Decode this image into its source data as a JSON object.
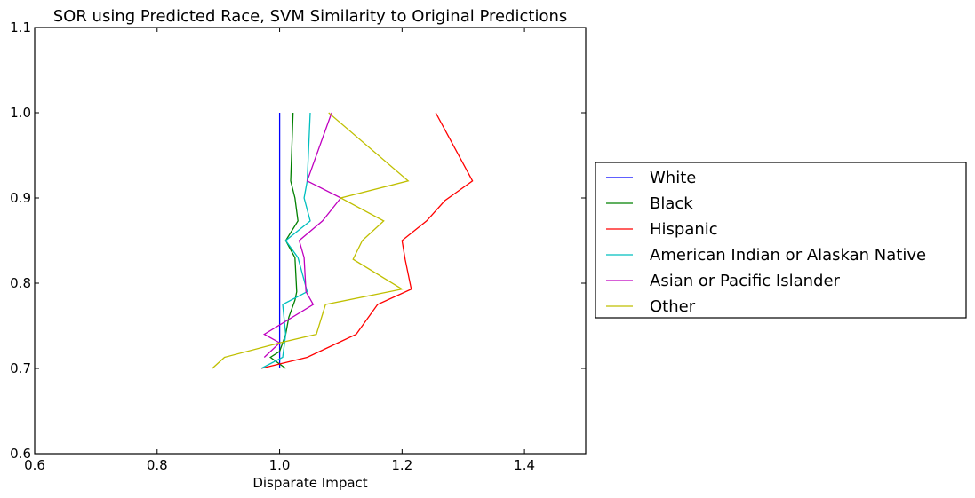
{
  "chart_data": {
    "type": "line",
    "title": "SOR using Predicted Race, SVM Similarity to Original Predictions",
    "xlabel": "Disparate Impact",
    "ylabel": "",
    "xlim": [
      0.6,
      1.5
    ],
    "ylim": [
      0.6,
      1.1
    ],
    "xticks": [
      "0.6",
      "0.8",
      "1.0",
      "1.2",
      "1.4"
    ],
    "yticks": [
      "0.6",
      "0.7",
      "0.8",
      "0.9",
      "1.0",
      "1.1"
    ],
    "grid": false,
    "legend_position": "center-right outside",
    "series": [
      {
        "name": "White",
        "color": "#0000ff",
        "points": [
          [
            1.0,
            0.7
          ],
          [
            1.0,
            0.71
          ],
          [
            1.0,
            0.72
          ],
          [
            1.0,
            0.73
          ],
          [
            1.0,
            0.74
          ],
          [
            1.0,
            0.76
          ],
          [
            1.0,
            0.78
          ],
          [
            1.0,
            0.79
          ],
          [
            1.0,
            0.83
          ],
          [
            1.0,
            0.85
          ],
          [
            1.0,
            0.87
          ],
          [
            1.0,
            0.9
          ],
          [
            1.0,
            0.92
          ],
          [
            1.0,
            1.0
          ]
        ]
      },
      {
        "name": "Black",
        "color": "#008000",
        "points": [
          [
            1.01,
            0.7
          ],
          [
            0.985,
            0.713
          ],
          [
            1.0,
            0.72
          ],
          [
            1.005,
            0.73
          ],
          [
            1.01,
            0.74
          ],
          [
            1.015,
            0.76
          ],
          [
            1.025,
            0.78
          ],
          [
            1.028,
            0.79
          ],
          [
            1.025,
            0.83
          ],
          [
            1.01,
            0.85
          ],
          [
            1.03,
            0.873
          ],
          [
            1.025,
            0.9
          ],
          [
            1.018,
            0.92
          ],
          [
            1.022,
            1.0
          ]
        ]
      },
      {
        "name": "Hispanic",
        "color": "#ff0000",
        "points": [
          [
            0.97,
            0.7
          ],
          [
            1.045,
            0.713
          ],
          [
            1.125,
            0.74
          ],
          [
            1.16,
            0.775
          ],
          [
            1.215,
            0.793
          ],
          [
            1.205,
            0.828
          ],
          [
            1.2,
            0.85
          ],
          [
            1.24,
            0.873
          ],
          [
            1.27,
            0.897
          ],
          [
            1.315,
            0.92
          ],
          [
            1.255,
            1.0
          ]
        ]
      },
      {
        "name": "American Indian or Alaskan Native",
        "color": "#00bfbf",
        "points": [
          [
            0.97,
            0.7
          ],
          [
            1.005,
            0.713
          ],
          [
            1.01,
            0.74
          ],
          [
            1.005,
            0.775
          ],
          [
            1.045,
            0.79
          ],
          [
            1.03,
            0.83
          ],
          [
            1.01,
            0.85
          ],
          [
            1.05,
            0.873
          ],
          [
            1.04,
            0.9
          ],
          [
            1.045,
            0.92
          ],
          [
            1.05,
            1.0
          ]
        ]
      },
      {
        "name": "Asian or Pacific Islander",
        "color": "#bf00bf",
        "points": [
          [
            0.975,
            0.713
          ],
          [
            1.0,
            0.73
          ],
          [
            0.975,
            0.74
          ],
          [
            1.055,
            0.775
          ],
          [
            1.043,
            0.79
          ],
          [
            1.04,
            0.83
          ],
          [
            1.032,
            0.85
          ],
          [
            1.07,
            0.873
          ],
          [
            1.1,
            0.9
          ],
          [
            1.045,
            0.92
          ],
          [
            1.085,
            1.0
          ]
        ]
      },
      {
        "name": "Other",
        "color": "#bfbf00",
        "points": [
          [
            0.89,
            0.7
          ],
          [
            0.91,
            0.713
          ],
          [
            1.0,
            0.73
          ],
          [
            1.06,
            0.74
          ],
          [
            1.075,
            0.775
          ],
          [
            1.2,
            0.793
          ],
          [
            1.12,
            0.828
          ],
          [
            1.135,
            0.85
          ],
          [
            1.17,
            0.873
          ],
          [
            1.1,
            0.9
          ],
          [
            1.21,
            0.92
          ],
          [
            1.08,
            1.0
          ]
        ]
      }
    ]
  }
}
